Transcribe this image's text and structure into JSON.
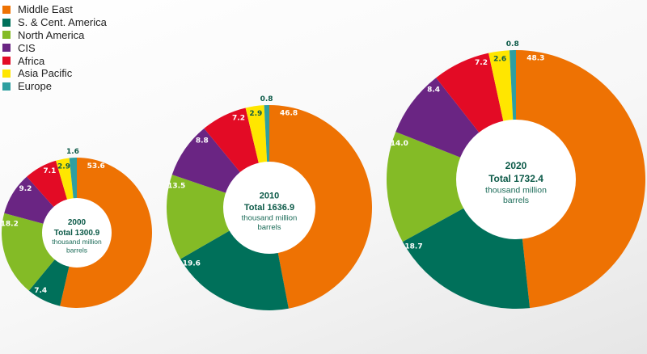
{
  "chart_data": {
    "type": "pie",
    "variant": "donut",
    "categories": [
      "Middle East",
      "S. & Cent. America",
      "North America",
      "CIS",
      "Africa",
      "Asia Pacific",
      "Europe"
    ],
    "colors": [
      "#ee7203",
      "#00705a",
      "#84bb26",
      "#6a2583",
      "#e30b25",
      "#ffe600",
      "#2e9fa0"
    ],
    "legend_placement": "top-left",
    "charts": [
      {
        "year": "2000",
        "total_label": "Total 1300.9",
        "unit": "thousand million",
        "unit2": "barrels",
        "total": 1300.9,
        "values": [
          53.6,
          7.4,
          18.2,
          9.2,
          7.1,
          2.9,
          1.6
        ],
        "labels": [
          "53.6",
          "7.4",
          "18.2",
          "9.2",
          "7.1",
          "2.9",
          "1.6"
        ]
      },
      {
        "year": "2010",
        "total_label": "Total 1636.9",
        "unit": "thousand million",
        "unit2": "barrels",
        "total": 1636.9,
        "values": [
          46.8,
          19.6,
          13.5,
          8.8,
          7.2,
          2.9,
          0.8
        ],
        "labels": [
          "46.8",
          "19.6",
          "13.5",
          "8.8",
          "7.2",
          "2.9",
          "0.8"
        ]
      },
      {
        "year": "2020",
        "total_label": "Total 1732.4",
        "unit": "thousand million",
        "unit2": "barrels",
        "total": 1732.4,
        "values": [
          48.3,
          18.7,
          14.0,
          8.4,
          7.2,
          2.6,
          0.8
        ],
        "labels": [
          "48.3",
          "18.7",
          "14.0",
          "8.4",
          "7.2",
          "2.6",
          "0.8"
        ]
      }
    ]
  }
}
